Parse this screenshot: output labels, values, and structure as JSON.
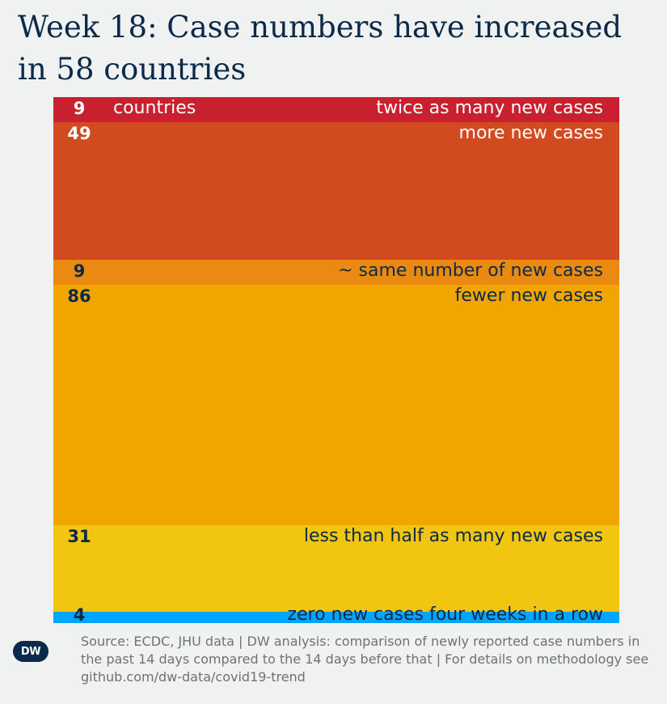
{
  "title": "Week 18: Case numbers have increased in 58 countries",
  "chart_data": {
    "type": "bar",
    "stacked": true,
    "orientation": "vertical-stack",
    "unit_label": "countries",
    "total": 188,
    "segments": [
      {
        "value": 9,
        "label": "twice as many new cases",
        "color": "#c8202f",
        "text_color": "#ffffff"
      },
      {
        "value": 49,
        "label": "more new cases",
        "color": "#d24a1f",
        "text_color": "#ffffff"
      },
      {
        "value": 9,
        "label": "~ same number of new cases",
        "color": "#ea8a10",
        "text_color": "#0b2a4a"
      },
      {
        "value": 86,
        "label": "fewer new cases",
        "color": "#f0a500",
        "text_color": "#0b2a4a"
      },
      {
        "value": 31,
        "label": "less than half as many new cases",
        "color": "#f2c511",
        "text_color": "#0b2a4a"
      },
      {
        "value": 4,
        "label": "zero new cases four weeks in a row",
        "color": "#00a5ff",
        "text_color": "#0b2a4a"
      }
    ]
  },
  "footer": {
    "logo_text": "DW",
    "source": "Source: ECDC, JHU data | DW analysis: comparison of newly reported case numbers in the past 14 days compared to the 14 days before that | For details on methodology see github.com/dw-data/covid19-trend"
  }
}
